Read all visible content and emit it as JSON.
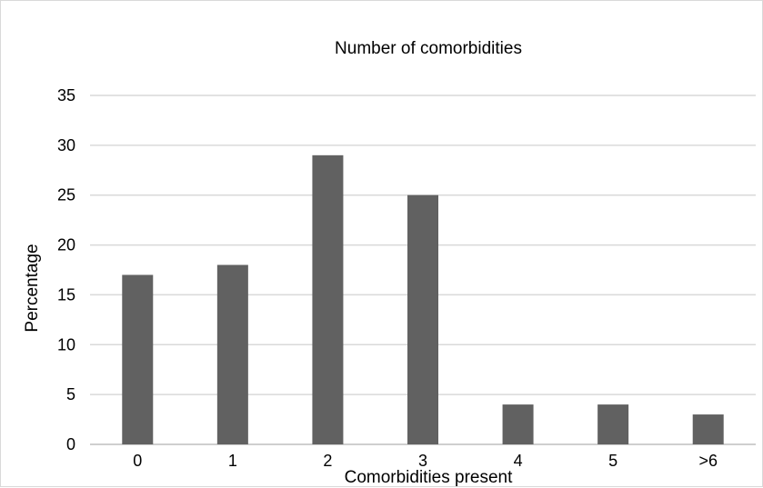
{
  "chart_data": {
    "type": "bar",
    "title": "Number of comorbidities",
    "xlabel": "Comorbidities present",
    "ylabel": "Percentage",
    "categories": [
      "0",
      "1",
      "2",
      "3",
      "4",
      "5",
      ">6"
    ],
    "values": [
      17,
      18,
      29,
      25,
      4,
      4,
      3
    ],
    "ylim": [
      0,
      35
    ],
    "yticks": [
      "0",
      "5",
      "10",
      "15",
      "20",
      "25",
      "30",
      "35"
    ],
    "grid": true,
    "legend": "none",
    "bar_color": "#616161"
  }
}
